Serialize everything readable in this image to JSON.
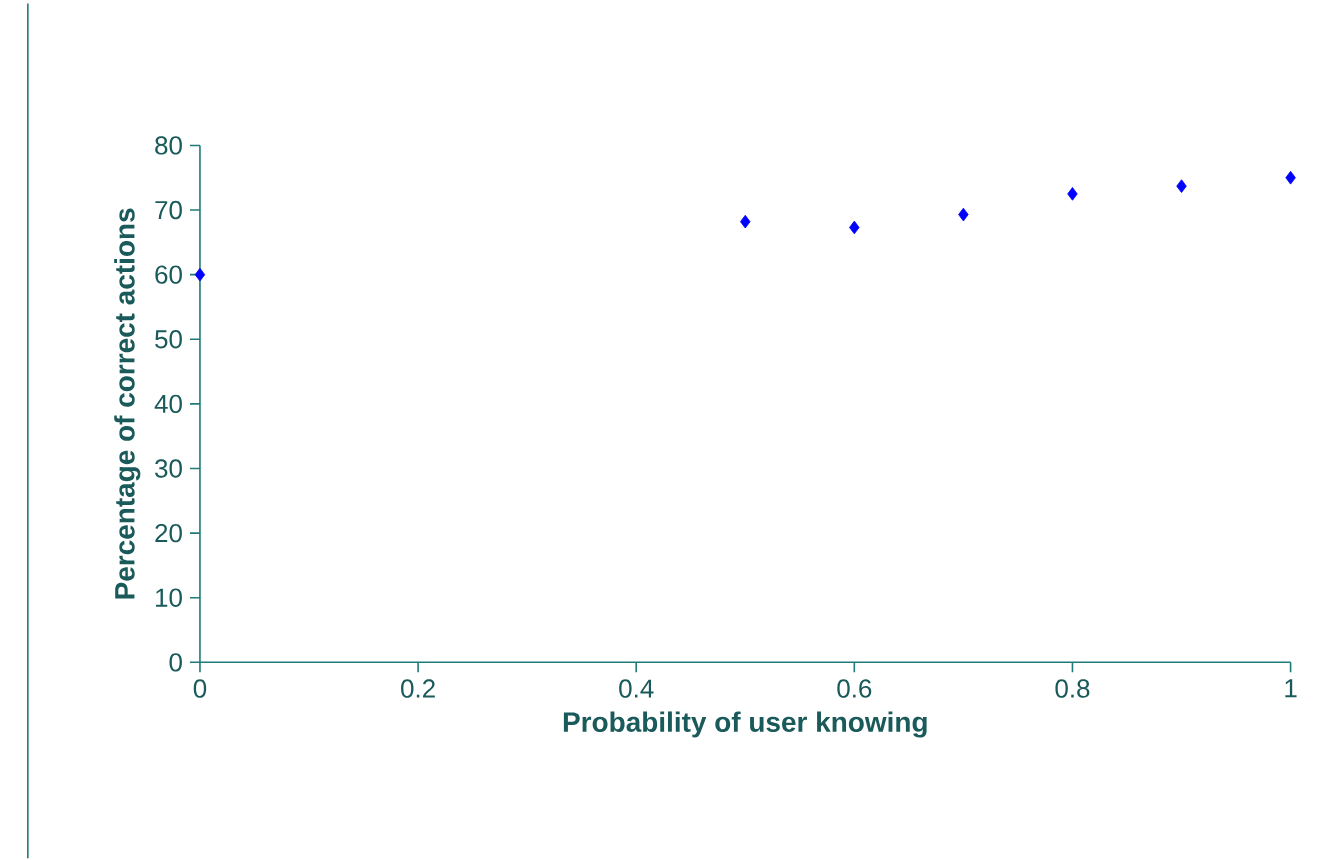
{
  "chart_data": {
    "type": "scatter",
    "xlabel": "Probability of user knowing",
    "ylabel": "Percentage of correct actions",
    "x": [
      0,
      0.5,
      0.6,
      0.7,
      0.8,
      0.9,
      1
    ],
    "series": [
      {
        "color": "#0000ff",
        "values": [
          60,
          68.2,
          67.3,
          69.3,
          72.5,
          73.7,
          75
        ]
      }
    ],
    "xlim": [
      0,
      1
    ],
    "xticks": [
      0,
      0.2,
      0.4,
      0.6,
      0.8,
      1
    ],
    "ylim": [
      0,
      80
    ],
    "yticks": [
      0,
      10,
      20,
      30,
      40,
      50,
      60,
      70,
      80
    ],
    "marker": "diamond"
  }
}
